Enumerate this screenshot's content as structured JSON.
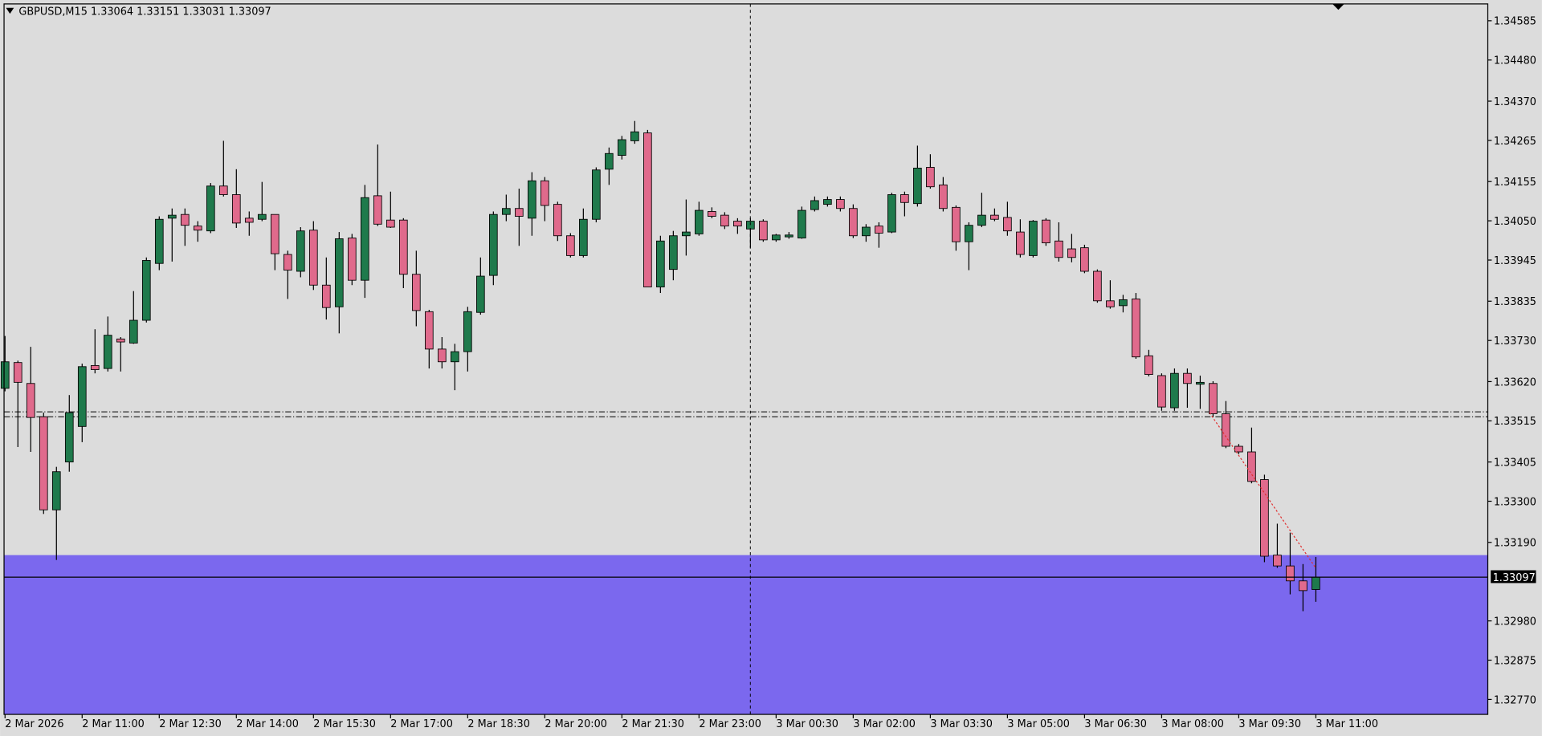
{
  "chart_data": {
    "type": "candlestick",
    "symbol": "GBPUSD,M15",
    "up_color": "#1f7a4c",
    "down_color": "#e06a8c",
    "zone": {
      "from": 1.33156,
      "color": "#7b68ee"
    },
    "order_levels": [
      1.33539,
      1.33526
    ],
    "ylim": [
      1.3273,
      1.3463
    ],
    "yticks": [
      1.34585,
      {
        "value": 1.3448,
        "label": "1.34480"
      },
      {
        "value": 1.3437,
        "label": "1.34370"
      },
      1.34265,
      1.34155,
      {
        "value": 1.3405,
        "label": "1.34050"
      },
      1.33945,
      1.33835,
      {
        "value": 1.3373,
        "label": "1.33730"
      },
      {
        "value": 1.3362,
        "label": "1.33620"
      },
      1.33515,
      1.33405,
      {
        "value": 1.333,
        "label": "1.33300"
      },
      {
        "value": 1.3319,
        "label": "1.33190"
      },
      {
        "value": 1.3298,
        "label": "1.32980"
      },
      1.32875,
      {
        "value": 1.3277,
        "label": "1.32770"
      }
    ],
    "xticks": [
      {
        "value": 0,
        "label": "2 Mar 2026"
      },
      {
        "value": 6,
        "label": "2 Mar 11:00"
      },
      {
        "value": 12,
        "label": "2 Mar 12:30"
      },
      {
        "value": 18,
        "label": "2 Mar 14:00"
      },
      {
        "value": 24,
        "label": "2 Mar 15:30"
      },
      {
        "value": 30,
        "label": "2 Mar 17:00"
      },
      {
        "value": 36,
        "label": "2 Mar 18:30"
      },
      {
        "value": 42,
        "label": "2 Mar 20:00"
      },
      {
        "value": 48,
        "label": "2 Mar 21:30"
      },
      {
        "value": 54,
        "label": "2 Mar 23:00"
      },
      {
        "value": 60,
        "label": "3 Mar 00:30"
      },
      {
        "value": 66,
        "label": "3 Mar 02:00"
      },
      {
        "value": 72,
        "label": "3 Mar 03:30"
      },
      {
        "value": 78,
        "label": "3 Mar 05:00"
      },
      {
        "value": 84,
        "label": "3 Mar 06:30"
      },
      {
        "value": 90,
        "label": "3 Mar 08:00"
      },
      {
        "value": 96,
        "label": "3 Mar 09:30"
      },
      {
        "value": 102,
        "label": "3 Mar 11:00"
      }
    ],
    "open": [
      1.33602,
      1.33671,
      1.33615,
      1.33526,
      1.33277,
      1.33405,
      1.335,
      1.33663,
      1.33655,
      1.33734,
      1.33723,
      1.33784,
      1.33936,
      1.34057,
      1.34067,
      1.34036,
      1.34023,
      1.34143,
      1.3412,
      1.34057,
      1.34054,
      1.34067,
      1.3396,
      1.33915,
      1.34025,
      1.33878,
      1.3382,
      1.34004,
      1.33891,
      1.34117,
      1.34052,
      1.34052,
      1.33907,
      1.33807,
      1.33707,
      1.33673,
      1.337,
      1.33805,
      1.33904,
      1.34067,
      1.34083,
      1.34057,
      1.34157,
      1.34094,
      1.3401,
      1.33957,
      1.34054,
      1.34188,
      1.34225,
      1.34264,
      1.34285,
      1.33873,
      1.3392,
      1.3401,
      1.34015,
      1.34075,
      1.34065,
      1.34049,
      1.34028,
      1.34049,
      1.33999,
      1.34007,
      1.34004,
      1.3408,
      1.34094,
      1.34107,
      1.34083,
      1.3401,
      1.34036,
      1.3402,
      1.3412,
      1.34096,
      1.34193,
      1.34146,
      1.34086,
      1.33994,
      1.34038,
      1.34065,
      1.34059,
      1.3402,
      1.33957,
      1.34052,
      1.33996,
      1.33975,
      1.33978,
      1.33915,
      1.33836,
      1.33823,
      1.33841,
      1.33689,
      1.33636,
      1.3355,
      1.33642,
      1.33613,
      1.33615,
      1.33534,
      1.33447,
      1.33432,
      1.33358,
      1.33156,
      1.33127,
      1.33087,
      1.33064
    ],
    "high": [
      1.33742,
      1.33676,
      1.33713,
      1.33537,
      1.33392,
      1.33584,
      1.33668,
      1.3376,
      1.33794,
      1.33739,
      1.33862,
      1.33952,
      1.34062,
      1.34083,
      1.34083,
      1.34049,
      1.34151,
      1.34264,
      1.34188,
      1.34075,
      1.34154,
      1.34067,
      1.3397,
      1.34033,
      1.34049,
      1.33952,
      1.3402,
      1.34015,
      1.34146,
      1.34254,
      1.34128,
      1.34057,
      1.3397,
      1.33812,
      1.33739,
      1.33721,
      1.3382,
      1.33952,
      1.34075,
      1.3412,
      1.34136,
      1.3418,
      1.34167,
      1.34101,
      1.34017,
      1.34083,
      1.34193,
      1.34246,
      1.34277,
      1.34317,
      1.34293,
      1.3401,
      1.34023,
      1.34107,
      1.34101,
      1.34086,
      1.34073,
      1.34057,
      1.34057,
      1.34054,
      1.34015,
      1.3402,
      1.34088,
      1.34115,
      1.34115,
      1.34115,
      1.34094,
      1.34041,
      1.34046,
      1.34125,
      1.34128,
      1.34251,
      1.34228,
      1.34167,
      1.34091,
      1.34046,
      1.34125,
      1.34083,
      1.34101,
      1.34054,
      1.34052,
      1.34057,
      1.34046,
      1.34015,
      1.33986,
      1.3392,
      1.33891,
      1.33852,
      1.33857,
      1.33705,
      1.33642,
      1.33655,
      1.33655,
      1.33636,
      1.33621,
      1.33568,
      1.33453,
      1.33497,
      1.33371,
      1.3324,
      1.33216,
      1.33132,
      1.33151
    ],
    "low": [
      1.33594,
      1.33445,
      1.33432,
      1.33266,
      1.33143,
      1.33379,
      1.33458,
      1.33642,
      1.33647,
      1.33647,
      1.33721,
      1.33778,
      1.33918,
      1.33941,
      1.33983,
      1.33994,
      1.34017,
      1.34115,
      1.34031,
      1.3401,
      1.34049,
      1.33918,
      1.33841,
      1.33899,
      1.33865,
      1.33786,
      1.33749,
      1.33878,
      1.33844,
      1.34036,
      1.34031,
      1.3387,
      1.33768,
      1.33655,
      1.33655,
      1.33597,
      1.33647,
      1.33799,
      1.33878,
      1.34049,
      1.33983,
      1.3401,
      1.34049,
      1.33996,
      1.33952,
      1.33952,
      1.34046,
      1.34146,
      1.34214,
      1.34256,
      1.33873,
      1.33857,
      1.33891,
      1.33957,
      1.3401,
      1.34057,
      1.34028,
      1.34015,
      1.33978,
      1.33994,
      1.33994,
      1.34002,
      1.34002,
      1.34075,
      1.34088,
      1.34075,
      1.34004,
      1.33994,
      1.33978,
      1.34017,
      1.34062,
      1.34088,
      1.34136,
      1.34075,
      1.3397,
      1.33918,
      1.34033,
      1.34049,
      1.3401,
      1.33952,
      1.33952,
      1.33983,
      1.33941,
      1.33939,
      1.3391,
      1.33831,
      1.33815,
      1.33805,
      1.33681,
      1.33634,
      1.33542,
      1.33542,
      1.3355,
      1.33547,
      1.33526,
      1.33442,
      1.33426,
      1.33348,
      1.33137,
      1.33122,
      1.33051,
      1.33006,
      1.33031
    ],
    "close": [
      1.33673,
      1.33618,
      1.33524,
      1.33277,
      1.33379,
      1.33537,
      1.3366,
      1.33652,
      1.33744,
      1.33726,
      1.33784,
      1.33944,
      1.34054,
      1.34065,
      1.34038,
      1.34025,
      1.34143,
      1.3412,
      1.34044,
      1.34046,
      1.34067,
      1.33962,
      1.33918,
      1.34023,
      1.33878,
      1.33818,
      1.34002,
      1.33891,
      1.34112,
      1.34041,
      1.34033,
      1.33907,
      1.3381,
      1.33707,
      1.33673,
      1.337,
      1.33807,
      1.33902,
      1.34067,
      1.34083,
      1.34062,
      1.34157,
      1.34091,
      1.3401,
      1.33957,
      1.34054,
      1.34186,
      1.3423,
      1.34267,
      1.34288,
      1.33873,
      1.33996,
      1.3401,
      1.3402,
      1.34078,
      1.34062,
      1.34036,
      1.34036,
      1.34049,
      1.33999,
      1.34012,
      1.34012,
      1.34078,
      1.34104,
      1.34107,
      1.34083,
      1.3401,
      1.34033,
      1.34017,
      1.3412,
      1.34099,
      1.34191,
      1.34141,
      1.34083,
      1.33994,
      1.34038,
      1.34065,
      1.34054,
      1.34023,
      1.3396,
      1.34049,
      1.33991,
      1.33952,
      1.33952,
      1.33915,
      1.33836,
      1.3382,
      1.33839,
      1.33686,
      1.33639,
      1.33552,
      1.33642,
      1.33615,
      1.33618,
      1.33534,
      1.33447,
      1.33432,
      1.33353,
      1.33153,
      1.33127,
      1.33087,
      1.33061,
      1.33097
    ]
  }
}
